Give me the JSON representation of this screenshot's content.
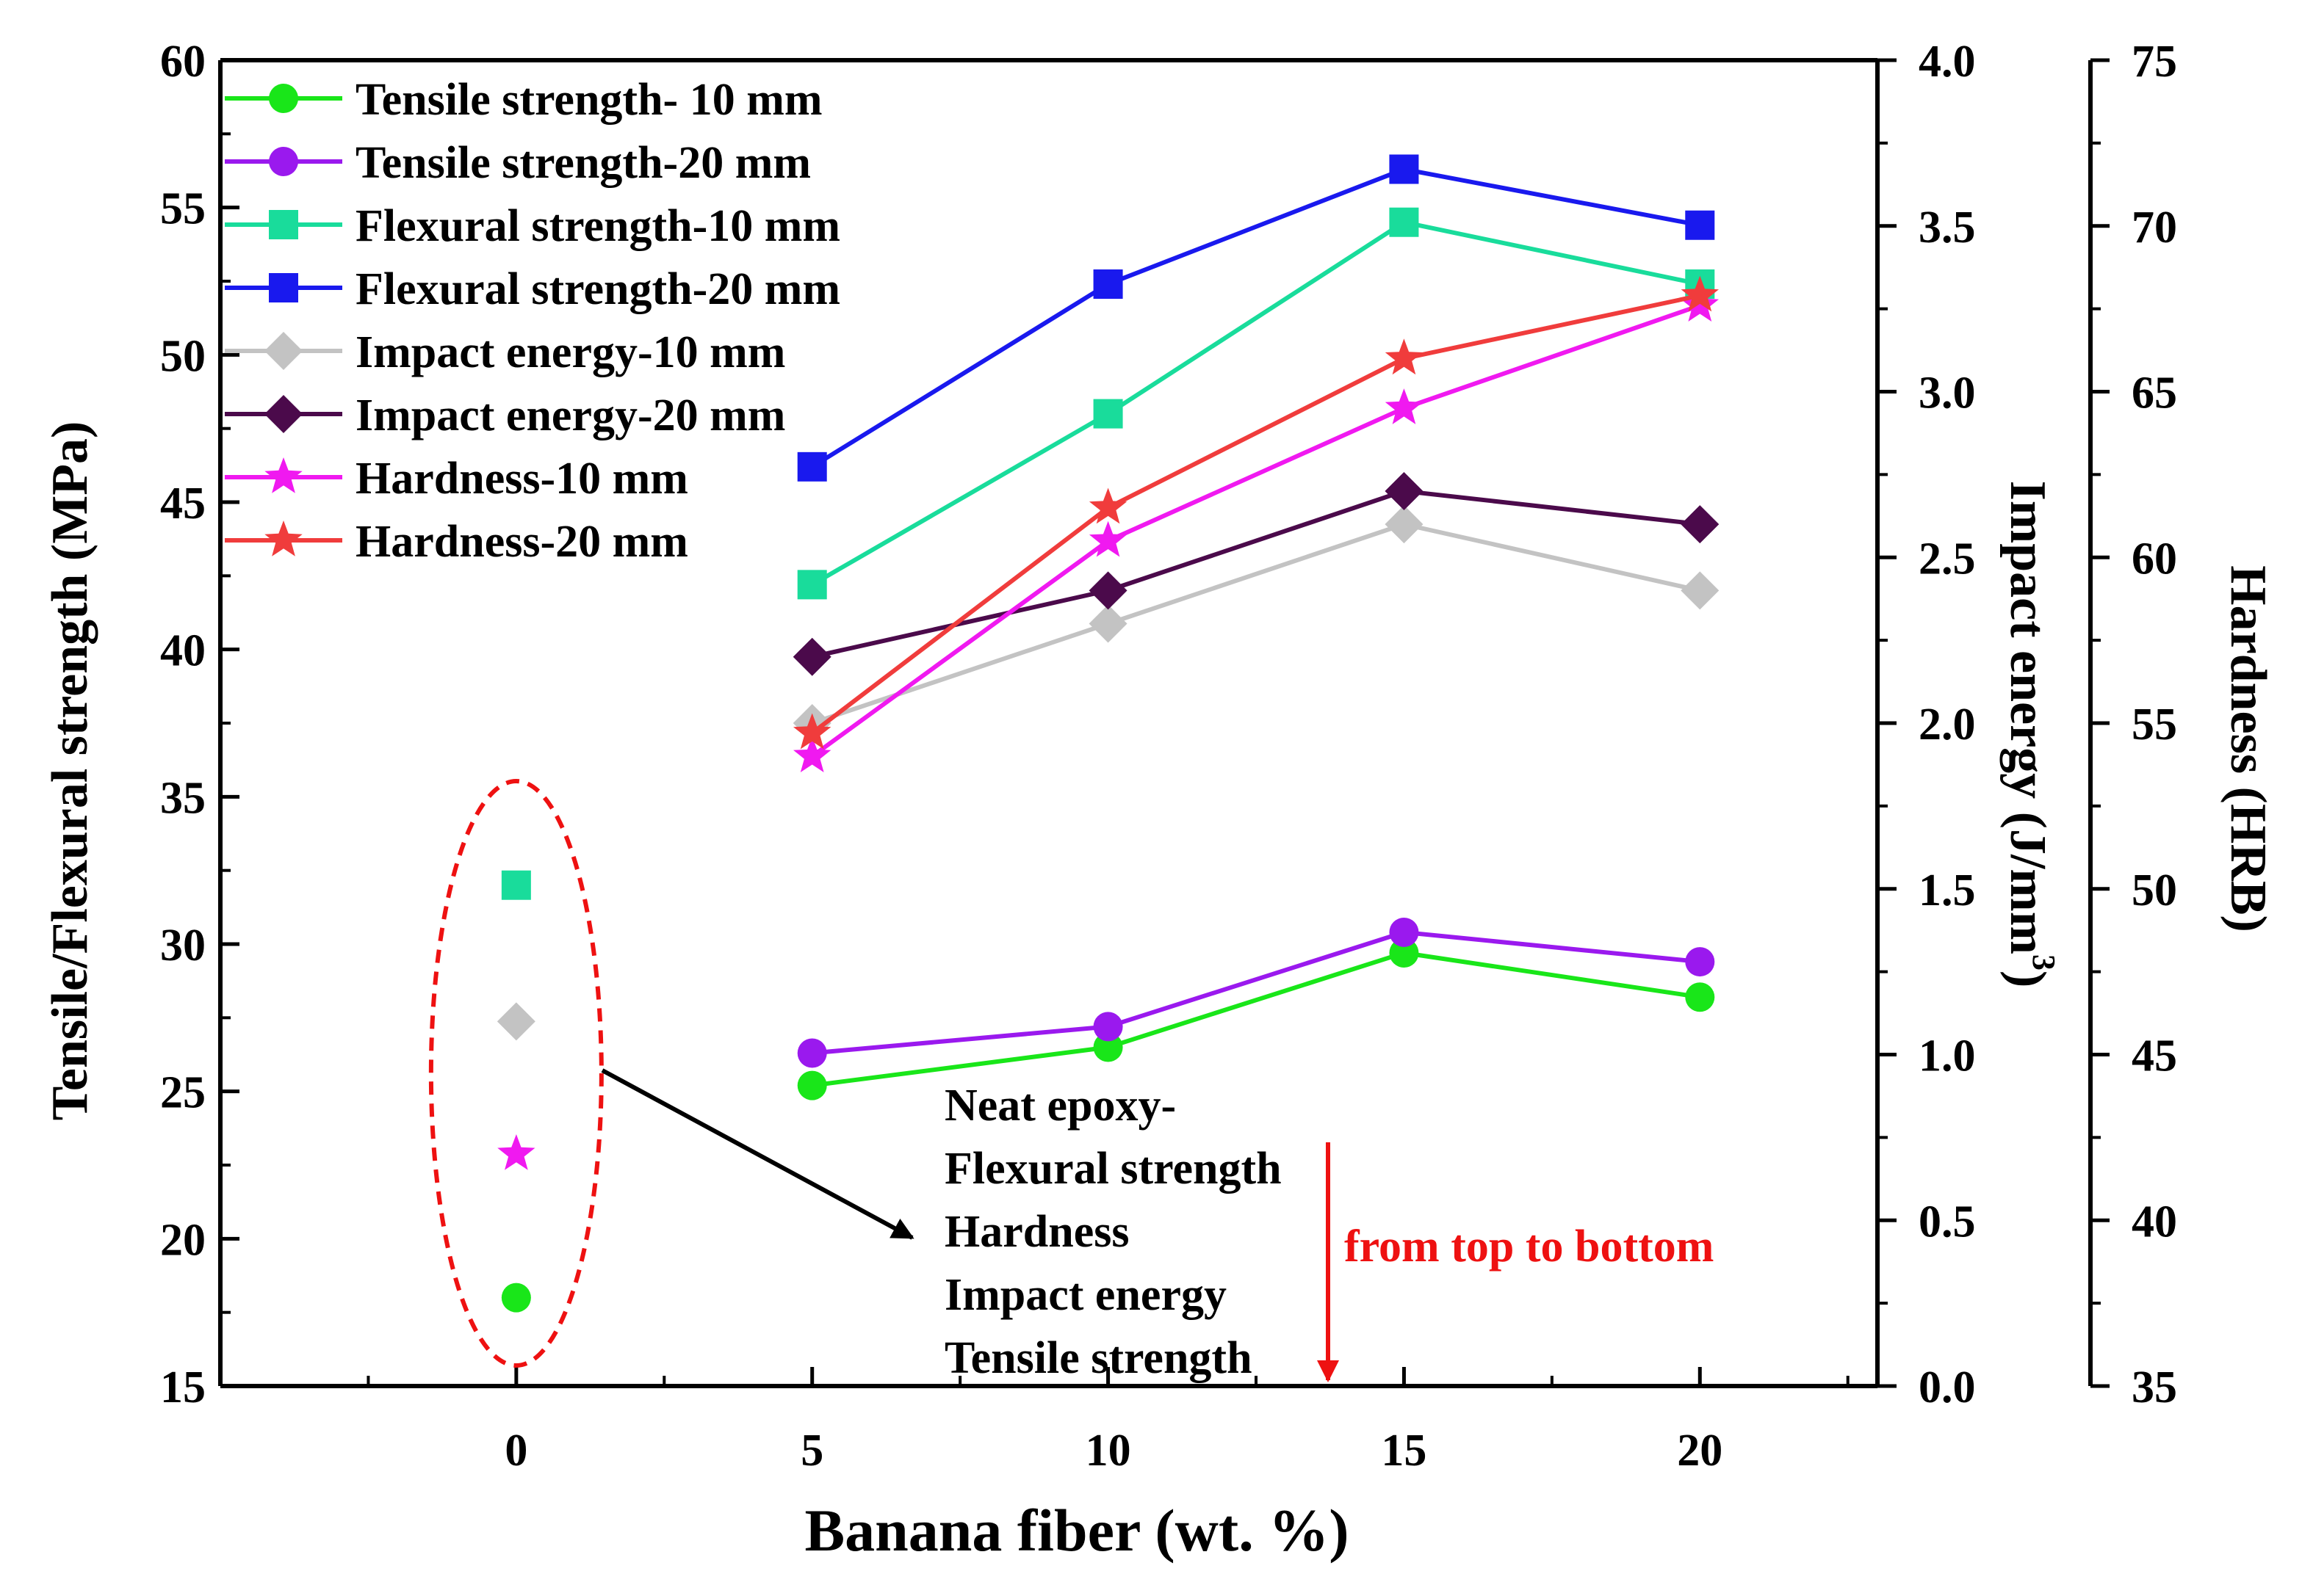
{
  "chart_data": {
    "type": "line",
    "xlabel": "Banana fiber (wt. %)",
    "x_ticks": [
      0,
      5,
      10,
      15,
      20
    ],
    "xlim": [
      -5,
      23
    ],
    "axes": {
      "left": {
        "label": "Tensile/Flexural strength (MPa)",
        "range": [
          15,
          60
        ],
        "ticks": [
          "15",
          "20",
          "25",
          "30",
          "35",
          "40",
          "45",
          "50",
          "55",
          "60"
        ]
      },
      "impact": {
        "label": "Impact energy (J/mm",
        "label_sup": "3",
        "label_close": ")",
        "range": [
          0.0,
          4.0
        ],
        "ticks": [
          "0.0",
          "0.5",
          "1.0",
          "1.5",
          "2.0",
          "2.5",
          "3.0",
          "3.5",
          "4.0"
        ]
      },
      "hardness": {
        "label": "Hardness (HRB)",
        "range": [
          35,
          75
        ],
        "ticks": [
          "35",
          "40",
          "45",
          "50",
          "55",
          "60",
          "65",
          "70",
          "75"
        ]
      }
    },
    "series": [
      {
        "name": "Tensile strength- 10 mm",
        "axis": "left",
        "marker": "circle",
        "color": "#19e619",
        "x": [
          5,
          10,
          15,
          20
        ],
        "y": [
          25.2,
          26.5,
          29.7,
          28.2
        ]
      },
      {
        "name": "Tensile strength-20 mm",
        "axis": "left",
        "marker": "circle",
        "color": "#9a19ee",
        "x": [
          5,
          10,
          15,
          20
        ],
        "y": [
          26.3,
          27.2,
          30.4,
          29.4
        ]
      },
      {
        "name": "Flexural strength-10 mm",
        "axis": "left",
        "marker": "square",
        "color": "#19dc9b",
        "x": [
          5,
          10,
          15,
          20
        ],
        "y": [
          42.2,
          48.0,
          54.5,
          52.4
        ]
      },
      {
        "name": "Flexural strength-20 mm",
        "axis": "left",
        "marker": "square",
        "color": "#1919ee",
        "x": [
          5,
          10,
          15,
          20
        ],
        "y": [
          46.2,
          52.4,
          56.3,
          54.4
        ]
      },
      {
        "name": "Impact energy-10 mm",
        "axis": "impact",
        "marker": "diamond",
        "color": "#c3c3c3",
        "x": [
          5,
          10,
          15,
          20
        ],
        "y": [
          2.0,
          2.3,
          2.6,
          2.4
        ]
      },
      {
        "name": "Impact energy-20 mm",
        "axis": "impact",
        "marker": "diamond",
        "color": "#4b0a4b",
        "x": [
          5,
          10,
          15,
          20
        ],
        "y": [
          2.2,
          2.4,
          2.7,
          2.6
        ]
      },
      {
        "name": "Hardness-10 mm",
        "axis": "hardness",
        "marker": "star",
        "color": "#f019f0",
        "x": [
          5,
          10,
          15,
          20
        ],
        "y": [
          54.0,
          60.5,
          64.5,
          67.6
        ]
      },
      {
        "name": "Hardness-20 mm",
        "axis": "hardness",
        "marker": "star",
        "color": "#f03c3c",
        "x": [
          5,
          10,
          15,
          20
        ],
        "y": [
          54.7,
          61.5,
          66.0,
          67.9
        ]
      }
    ],
    "neat_epoxy_points": [
      {
        "label": "Flexural strength",
        "axis": "left",
        "marker": "square",
        "color": "#19dc9b",
        "x": 0,
        "y": 32.0
      },
      {
        "label": "Impact energy",
        "axis": "impact",
        "marker": "diamond",
        "color": "#c3c3c3",
        "x": 0,
        "y": 1.1
      },
      {
        "label": "Hardness",
        "axis": "hardness",
        "marker": "star",
        "color": "#f019f0",
        "x": 0,
        "y": 42.0
      },
      {
        "label": "Tensile strength",
        "axis": "left",
        "marker": "circle",
        "color": "#19e619",
        "x": 0,
        "y": 18.0
      }
    ],
    "annotation": {
      "lines": [
        "Neat epoxy-",
        "Flexural strength",
        "Hardness",
        "Impact energy",
        "Tensile strength"
      ],
      "order_note": "from top to bottom",
      "note_color": "#ee1111",
      "ellipse_color": "#ee1111"
    },
    "legend_position": "top-left",
    "grid": false
  }
}
